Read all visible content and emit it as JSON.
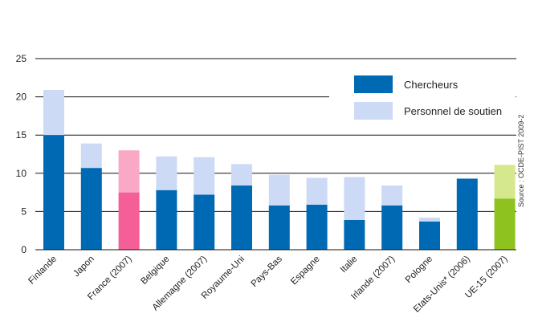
{
  "chart_data": {
    "type": "bar",
    "stacked": true,
    "categories": [
      "Finlande",
      "Japon",
      "France (2007)",
      "Belgique",
      "Allemagne (2007)",
      "Royaume-Uni",
      "Pays-Bas",
      "Espagne",
      "Italie",
      "Irlande (2007)",
      "Pologne",
      "Etats-Unis* (2006)",
      "UE-15 (2007)"
    ],
    "series": [
      {
        "name": "Chercheurs",
        "values": [
          15.0,
          10.7,
          7.5,
          7.8,
          7.2,
          8.4,
          5.8,
          5.9,
          3.9,
          5.8,
          3.7,
          9.3,
          6.7
        ],
        "color": "#0069b3"
      },
      {
        "name": "Personnel de soutien",
        "values": [
          5.9,
          3.2,
          5.5,
          4.4,
          4.9,
          2.8,
          4.0,
          3.5,
          5.6,
          2.6,
          0.5,
          0.0,
          4.4
        ],
        "color": "#ccdaf5"
      }
    ],
    "highlight_colors": {
      "France (2007)": {
        "Chercheurs": "#f45f97",
        "Personnel de soutien": "#f9a9c6"
      },
      "UE-15 (2007)": {
        "Chercheurs": "#8dc21f",
        "Personnel de soutien": "#d6e88e"
      }
    },
    "yticks": [
      0,
      5,
      10,
      15,
      20,
      25
    ],
    "ylim": [
      0,
      25
    ],
    "grid": true,
    "legend_position": "top-right",
    "source": "Source : OCDE-PIST 2009-2"
  }
}
